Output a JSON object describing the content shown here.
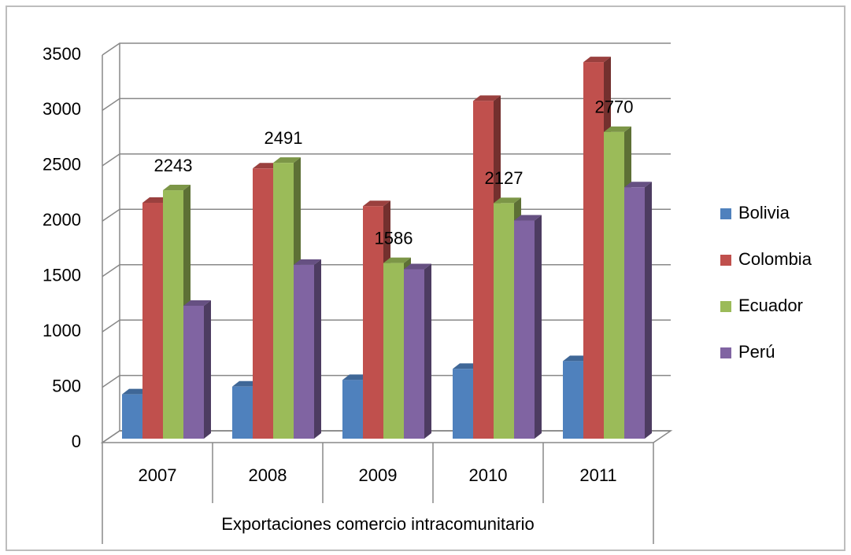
{
  "chart_data": {
    "type": "bar3d",
    "x_label": "Exportaciones comercio intracomunitario",
    "categories": [
      "2007",
      "2008",
      "2009",
      "2010",
      "2011"
    ],
    "series": [
      {
        "name": "Bolivia",
        "color": "#4f81bd",
        "values": [
          400,
          470,
          530,
          630,
          700
        ]
      },
      {
        "name": "Colombia",
        "color": "#c0504d",
        "values": [
          2130,
          2440,
          2100,
          3050,
          3400
        ]
      },
      {
        "name": "Ecuador",
        "color": "#9bbb59",
        "values": [
          2243,
          2491,
          1586,
          2127,
          2770
        ],
        "show_labels": true
      },
      {
        "name": "Perú",
        "color": "#8064a2",
        "values": [
          1200,
          1570,
          1530,
          1970,
          2270
        ]
      }
    ],
    "ylim": [
      0,
      3500
    ],
    "yticks": [
      0,
      500,
      1000,
      1500,
      2000,
      2500,
      3000,
      3500
    ],
    "grid": true,
    "legend": "right"
  }
}
